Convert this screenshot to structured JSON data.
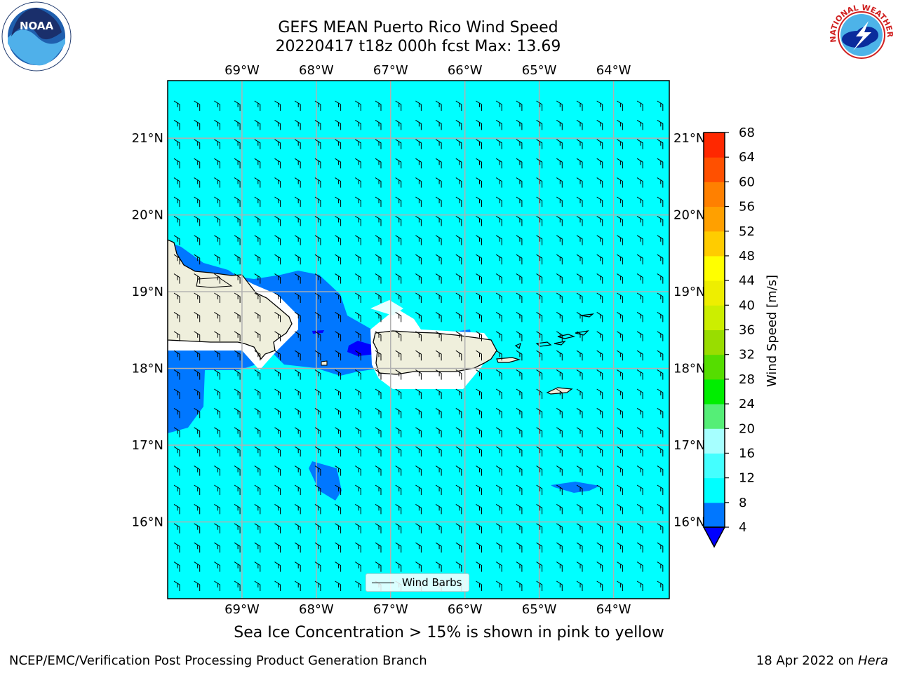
{
  "title": {
    "line1": "GEFS MEAN Puerto Rico Wind Speed",
    "line2": "20220417 t18z 000h fcst   Max: 13.69"
  },
  "logos": {
    "noaa": {
      "text": "NOAA",
      "ring_text": "NATIONAL OCEANIC AND ATMOSPHERIC ADMINISTRATION · U.S. DEPARTMENT OF COMMERCE",
      "icon": "noaa-logo"
    },
    "nws": {
      "ring_text": "NATIONAL WEATHER SERVICE",
      "icon": "nws-logo"
    }
  },
  "map": {
    "lon_range": [
      -70.0,
      -63.25
    ],
    "lat_range": [
      15.0,
      21.75
    ],
    "lon_ticks": [
      {
        "value": -69,
        "label": "69°W"
      },
      {
        "value": -68,
        "label": "68°W"
      },
      {
        "value": -67,
        "label": "67°W"
      },
      {
        "value": -66,
        "label": "66°W"
      },
      {
        "value": -65,
        "label": "65°W"
      },
      {
        "value": -64,
        "label": "64°W"
      }
    ],
    "lat_ticks": [
      {
        "value": 16,
        "label": "16°N"
      },
      {
        "value": 17,
        "label": "17°N"
      },
      {
        "value": 18,
        "label": "18°N"
      },
      {
        "value": 19,
        "label": "19°N"
      },
      {
        "value": 20,
        "label": "20°N"
      },
      {
        "value": 21,
        "label": "21°N"
      }
    ],
    "gridlines": true,
    "barb_direction": "east-northeast",
    "background_level_color": "#00ffff",
    "land_color": "#efefdc"
  },
  "legend": {
    "label": "Wind Barbs",
    "position": "bottom-center"
  },
  "colorbar": {
    "label": "Wind Speed [m/s]",
    "ticks": [
      4,
      8,
      12,
      16,
      20,
      24,
      28,
      32,
      36,
      40,
      44,
      48,
      52,
      56,
      60,
      64,
      68
    ],
    "colors": [
      "#0077ff",
      "#00ffff",
      "#44ffff",
      "#a6ffff",
      "#55ee77",
      "#00ee00",
      "#55dd00",
      "#99dd00",
      "#ccee00",
      "#eeee00",
      "#ffff00",
      "#ffcc00",
      "#ffa000",
      "#ff8000",
      "#ff5000",
      "#ff2800"
    ],
    "under_color": "#0000ff",
    "extend": "min"
  },
  "footer": {
    "note": "Sea Ice Concentration > 15% is shown in pink to yellow",
    "left": "NCEP/EMC/Verification Post Processing Product Generation Branch",
    "right_date": "18 Apr 2022 on ",
    "right_host": "Hera"
  }
}
